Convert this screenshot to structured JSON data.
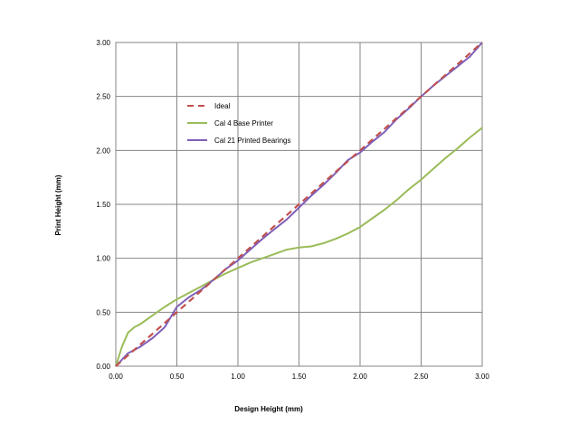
{
  "chart_data": {
    "type": "line",
    "title": "",
    "xlabel": "Design Height (mm)",
    "ylabel": "Print Height (mm)",
    "xlim": [
      0,
      3
    ],
    "ylim": [
      0,
      3
    ],
    "x_ticks": [
      "0.00",
      "0.50",
      "1.00",
      "1.50",
      "2.00",
      "2.50",
      "3.00"
    ],
    "y_ticks": [
      "0.00",
      "0.50",
      "1.00",
      "1.50",
      "2.00",
      "2.50",
      "3.00"
    ],
    "grid": true,
    "legend_position": "upper-left inside plot",
    "series": [
      {
        "name": "Ideal",
        "color": "#c0504d",
        "dash": "dashed",
        "x": [
          0,
          3
        ],
        "y": [
          0,
          3
        ]
      },
      {
        "name": "Cal 4 Base Printer",
        "color": "#9bbb59",
        "dash": "solid",
        "x": [
          0,
          0.05,
          0.1,
          0.15,
          0.2,
          0.3,
          0.4,
          0.5,
          0.6,
          0.7,
          0.8,
          0.9,
          1.0,
          1.1,
          1.2,
          1.3,
          1.4,
          1.5,
          1.6,
          1.7,
          1.8,
          1.9,
          2.0,
          2.1,
          2.2,
          2.3,
          2.4,
          2.5,
          2.6,
          2.7,
          2.8,
          2.9,
          3.0
        ],
        "y": [
          0,
          0.18,
          0.31,
          0.36,
          0.39,
          0.47,
          0.55,
          0.62,
          0.68,
          0.74,
          0.8,
          0.86,
          0.91,
          0.96,
          1.0,
          1.04,
          1.08,
          1.1,
          1.11,
          1.14,
          1.18,
          1.23,
          1.29,
          1.37,
          1.45,
          1.54,
          1.64,
          1.73,
          1.83,
          1.93,
          2.02,
          2.12,
          2.21
        ]
      },
      {
        "name": "Cal 21 Printed Bearings",
        "color": "#7f60b8",
        "dash": "solid",
        "x": [
          0,
          0.05,
          0.1,
          0.15,
          0.2,
          0.3,
          0.4,
          0.5,
          0.6,
          0.7,
          0.8,
          0.9,
          1.0,
          1.1,
          1.2,
          1.3,
          1.4,
          1.5,
          1.6,
          1.7,
          1.8,
          1.9,
          2.0,
          2.1,
          2.2,
          2.3,
          2.4,
          2.5,
          2.6,
          2.7,
          2.8,
          2.9,
          3.0
        ],
        "y": [
          0,
          0.06,
          0.12,
          0.15,
          0.18,
          0.26,
          0.36,
          0.55,
          0.64,
          0.71,
          0.8,
          0.9,
          0.98,
          1.08,
          1.18,
          1.27,
          1.36,
          1.47,
          1.58,
          1.68,
          1.79,
          1.91,
          1.98,
          2.08,
          2.17,
          2.29,
          2.39,
          2.5,
          2.6,
          2.69,
          2.78,
          2.87,
          3.0
        ]
      }
    ]
  }
}
